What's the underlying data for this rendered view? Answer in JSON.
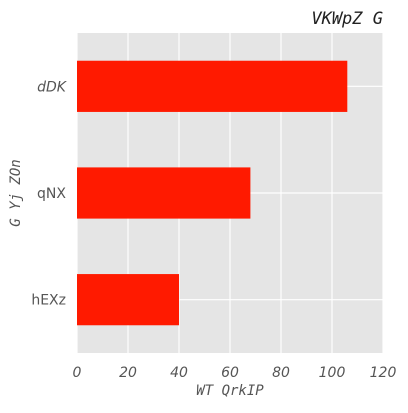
{
  "chart_data": {
    "type": "bar",
    "orientation": "horizontal",
    "title": "VKWpZ  G",
    "xlabel": "WT QrkIP",
    "ylabel": "G Yj ZOn",
    "categories": [
      "dDK",
      "qNX",
      "hEXz"
    ],
    "values": [
      106,
      68,
      40
    ],
    "xlim": [
      0,
      120
    ],
    "x_ticks": [
      0,
      20,
      40,
      60,
      80,
      100,
      120
    ],
    "grid": true,
    "legend": "none",
    "colors": {
      "bar": "#ff1a00",
      "plot_background": "#e5e5e5",
      "grid": "#ffffff",
      "text": "#555555",
      "title": "#222222"
    }
  }
}
